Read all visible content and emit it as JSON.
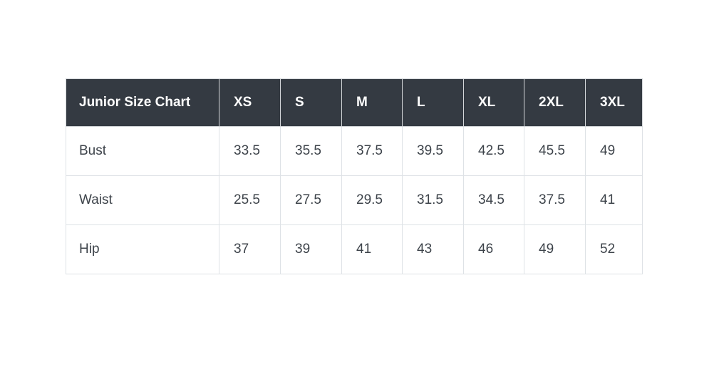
{
  "chart_data": {
    "type": "table",
    "title": "Junior Size Chart",
    "columns": [
      "XS",
      "S",
      "M",
      "L",
      "XL",
      "2XL",
      "3XL"
    ],
    "rows": [
      {
        "label": "Bust",
        "values": [
          "33.5",
          "35.5",
          "37.5",
          "39.5",
          "42.5",
          "45.5",
          "49"
        ]
      },
      {
        "label": "Waist",
        "values": [
          "25.5",
          "27.5",
          "29.5",
          "31.5",
          "34.5",
          "37.5",
          "41"
        ]
      },
      {
        "label": "Hip",
        "values": [
          "37",
          "39",
          "41",
          "43",
          "46",
          "49",
          "52"
        ]
      }
    ],
    "layout": {
      "header_position": "top",
      "row_header_column": true,
      "grid": true
    }
  },
  "colors": {
    "header_background": "#343a42",
    "header_text": "#ffffff",
    "body_text": "#3d434a",
    "border": "#dee2e6",
    "page_background": "#ffffff"
  }
}
